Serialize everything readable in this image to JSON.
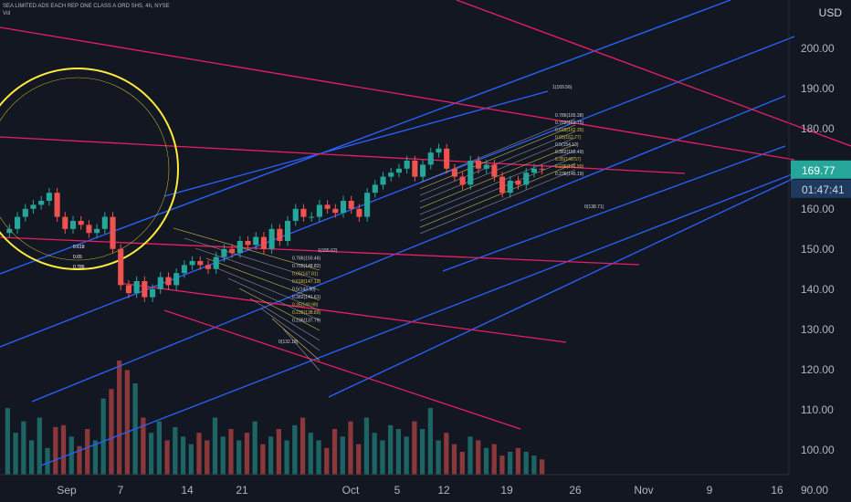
{
  "header": {
    "symbol_line": "SEA LIMITED ADS EACH REP ONE CLASS A ORD SHS, 4h, NYSE",
    "volume_label": "Vol"
  },
  "price_axis": {
    "currency": "USD",
    "current_price": "169.77",
    "countdown": "01:47:41"
  },
  "colors": {
    "background": "#131722",
    "up": "#26a69a",
    "down": "#ef5350",
    "channel_blue": "#2962ff",
    "channel_red": "#e91e63",
    "circle": "#ffeb3b",
    "fib_yellow": "#d4c24a",
    "fib_grey": "#9598a1",
    "price_tag": "#26a69a",
    "countdown_tag": "#1e3a5f"
  },
  "chart_data": {
    "type": "candlestick",
    "title": "SEA LIMITED ADS EACH REP ONE CLASS A ORD SHS, 4h, NYSE",
    "y_axis": {
      "ticks": [
        "200.00",
        "190.00",
        "180.00",
        "170.00",
        "160.00",
        "150.00",
        "140.00",
        "130.00",
        "120.00",
        "110.00",
        "100.00",
        "90.00"
      ],
      "range": [
        87,
        212
      ]
    },
    "x_axis": {
      "ticks": [
        "Sep",
        "7",
        "14",
        "21",
        "Oct",
        "5",
        "12",
        "19",
        "26",
        "Nov",
        "9",
        "16"
      ]
    },
    "price_series": [
      155,
      158,
      160,
      161,
      162,
      164,
      158,
      155,
      157,
      156,
      154,
      155,
      158,
      150,
      141,
      139,
      142,
      138,
      140,
      143,
      141,
      144,
      146,
      147,
      146,
      145,
      148,
      150,
      149,
      152,
      151,
      153,
      150,
      155,
      152,
      157,
      160,
      158,
      158,
      161,
      160,
      159,
      162,
      160,
      158,
      164,
      166,
      168,
      169,
      170,
      172,
      168,
      171,
      174,
      175,
      170,
      168,
      166,
      172,
      170,
      171,
      168,
      164,
      167,
      166,
      169,
      170,
      169.77
    ],
    "volume_series": [
      35,
      22,
      28,
      18,
      30,
      14,
      25,
      26,
      20,
      15,
      24,
      18,
      40,
      45,
      60,
      55,
      48,
      30,
      22,
      28,
      18,
      25,
      20,
      16,
      22,
      18,
      30,
      20,
      24,
      18,
      22,
      28,
      16,
      20,
      24,
      18,
      26,
      30,
      22,
      18,
      14,
      24,
      20,
      28,
      16,
      30,
      22,
      18,
      26,
      24,
      20,
      28,
      24,
      35,
      18,
      22,
      16,
      12,
      20,
      18,
      14,
      16,
      10,
      12,
      14,
      12,
      10,
      8
    ],
    "annotations": {
      "fib_left": [
        "0.618",
        "0.65",
        "0.786"
      ],
      "fib_mid": [
        "1(155.62)",
        "0.786(150.46)",
        "0.702(148.82)",
        "0.65(147.81)",
        "0.618(147.19)",
        "0.5(143.90)",
        "0.382(141.61)",
        "0.35(140.99)",
        "0.236(138.80)",
        "0.236(137.79)",
        "0(132.18)"
      ],
      "fib_right": [
        "1(169.56)",
        "0.786(165.38)",
        "0.702(163.75)",
        "0.618(162.35)",
        "0.65(162.77)",
        "0.5(154.13)",
        "0.382(150.49)",
        "0.35(149.57)",
        "0.236(146.90)",
        "0.236(145.19)",
        "0(138.71)"
      ]
    }
  }
}
